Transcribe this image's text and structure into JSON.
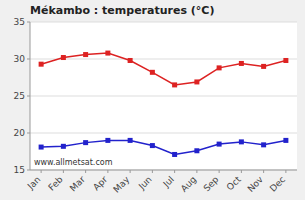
{
  "chart_data": {
    "type": "line",
    "title": "Mékambo : temperatures (°C)",
    "categories": [
      "Jan",
      "Feb",
      "Mar",
      "Apr",
      "May",
      "Jun",
      "Jul",
      "Aug",
      "Sep",
      "Oct",
      "Nov",
      "Dec"
    ],
    "series": [
      {
        "color": "#dd2222",
        "marker": "square",
        "values": [
          29.3,
          30.2,
          30.6,
          30.8,
          29.8,
          28.2,
          26.5,
          26.9,
          28.8,
          29.4,
          29.0,
          29.8
        ]
      },
      {
        "color": "#2222cc",
        "marker": "square",
        "values": [
          18.1,
          18.2,
          18.7,
          19.0,
          19.0,
          18.3,
          17.1,
          17.6,
          18.5,
          18.8,
          18.4,
          19.0
        ]
      }
    ],
    "ylim": [
      15,
      35
    ],
    "yticks": [
      15,
      20,
      25,
      30,
      35
    ],
    "grid": true,
    "annotations": [
      "www.allmetsat.com"
    ]
  }
}
